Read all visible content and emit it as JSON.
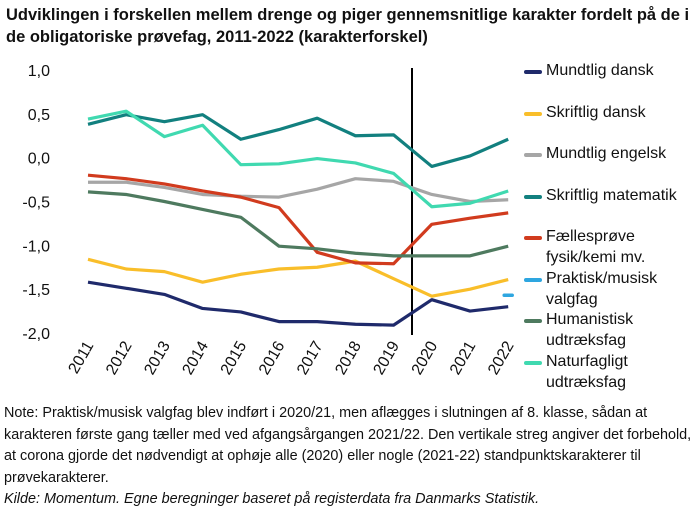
{
  "chart_data": {
    "type": "line",
    "title": "Udviklingen i forskellen mellem drenge og piger gennemsnitlige karakter fordelt på de i de obligatoriske prøvefag, 2011-2022 (karakterforskel)",
    "categories": [
      "2011",
      "2012",
      "2013",
      "2014",
      "2015",
      "2016",
      "2017",
      "2018",
      "2019",
      "2020",
      "2021",
      "2022"
    ],
    "ylim": [
      -2.0,
      1.0
    ],
    "yticks": [
      {
        "value": -2.0,
        "label": "-2,0"
      },
      {
        "value": -1.5,
        "label": "-1,5"
      },
      {
        "value": -1.0,
        "label": "-1,0"
      },
      {
        "value": -0.5,
        "label": "-0,5"
      },
      {
        "value": 0.0,
        "label": "0,0"
      },
      {
        "value": 0.5,
        "label": "0,5"
      },
      {
        "value": 1.0,
        "label": "1,0"
      }
    ],
    "series": [
      {
        "name": "Mundtlig dansk",
        "color": "#1f2a6b",
        "values": [
          -1.42,
          -1.49,
          -1.56,
          -1.72,
          -1.76,
          -1.87,
          -1.87,
          -1.9,
          -1.91,
          -1.62,
          -1.75,
          -1.7
        ]
      },
      {
        "name": "Skriftlig dansk",
        "color": "#f9be2a",
        "values": [
          -1.16,
          -1.27,
          -1.3,
          -1.42,
          -1.33,
          -1.27,
          -1.25,
          -1.18,
          -1.38,
          -1.58,
          -1.5,
          -1.39
        ]
      },
      {
        "name": "Mundtlig engelsk",
        "color": "#a6a6a6",
        "values": [
          -0.28,
          -0.28,
          -0.34,
          -0.42,
          -0.44,
          -0.45,
          -0.36,
          -0.24,
          -0.27,
          -0.42,
          -0.5,
          -0.48
        ]
      },
      {
        "name": "Skriftlig matematik",
        "color": "#12807f",
        "values": [
          0.38,
          0.49,
          0.41,
          0.49,
          0.21,
          0.32,
          0.45,
          0.25,
          0.26,
          -0.1,
          0.02,
          0.21
        ]
      },
      {
        "name": "Fællesprøve fysik/kemi mv.",
        "color": "#d13b1e",
        "values": [
          -0.2,
          -0.24,
          -0.3,
          -0.38,
          -0.45,
          -0.57,
          -1.08,
          -1.2,
          -1.21,
          -0.76,
          -0.69,
          -0.63
        ]
      },
      {
        "name": "Praktisk/musisk valgfag",
        "color": "#2ea6e0",
        "values": [
          null,
          null,
          null,
          null,
          null,
          null,
          null,
          null,
          null,
          null,
          null,
          -1.57
        ]
      },
      {
        "name": "Humanistisk udtræksfag",
        "color": "#4e7a5f",
        "values": [
          -0.39,
          -0.42,
          -0.5,
          -0.59,
          -0.68,
          -1.01,
          -1.04,
          -1.09,
          -1.12,
          -1.12,
          -1.12,
          -1.01
        ]
      },
      {
        "name": "Naturfagligt udtræksfag",
        "color": "#40d9b0",
        "values": [
          0.44,
          0.53,
          0.24,
          0.37,
          -0.08,
          -0.07,
          -0.01,
          -0.06,
          -0.18,
          -0.56,
          -0.52,
          -0.38
        ]
      }
    ],
    "note": "Note: Praktisk/musisk valgfag blev indført i 2020/21, men aflægges i slutningen af 8. klasse, sådan at karakteren første gang tæller med ved afgangsårgangen 2021/22. Den vertikale streg angiver det forbehold, at corona gjorde det nødvendigt at ophøje alle (2020) eller nogle (2021-22) standpunktskarakterer til prøvekarakterer.",
    "source": "Kilde: Momentum. Egne beregninger baseret på registerdata fra Danmarks Statistik."
  }
}
